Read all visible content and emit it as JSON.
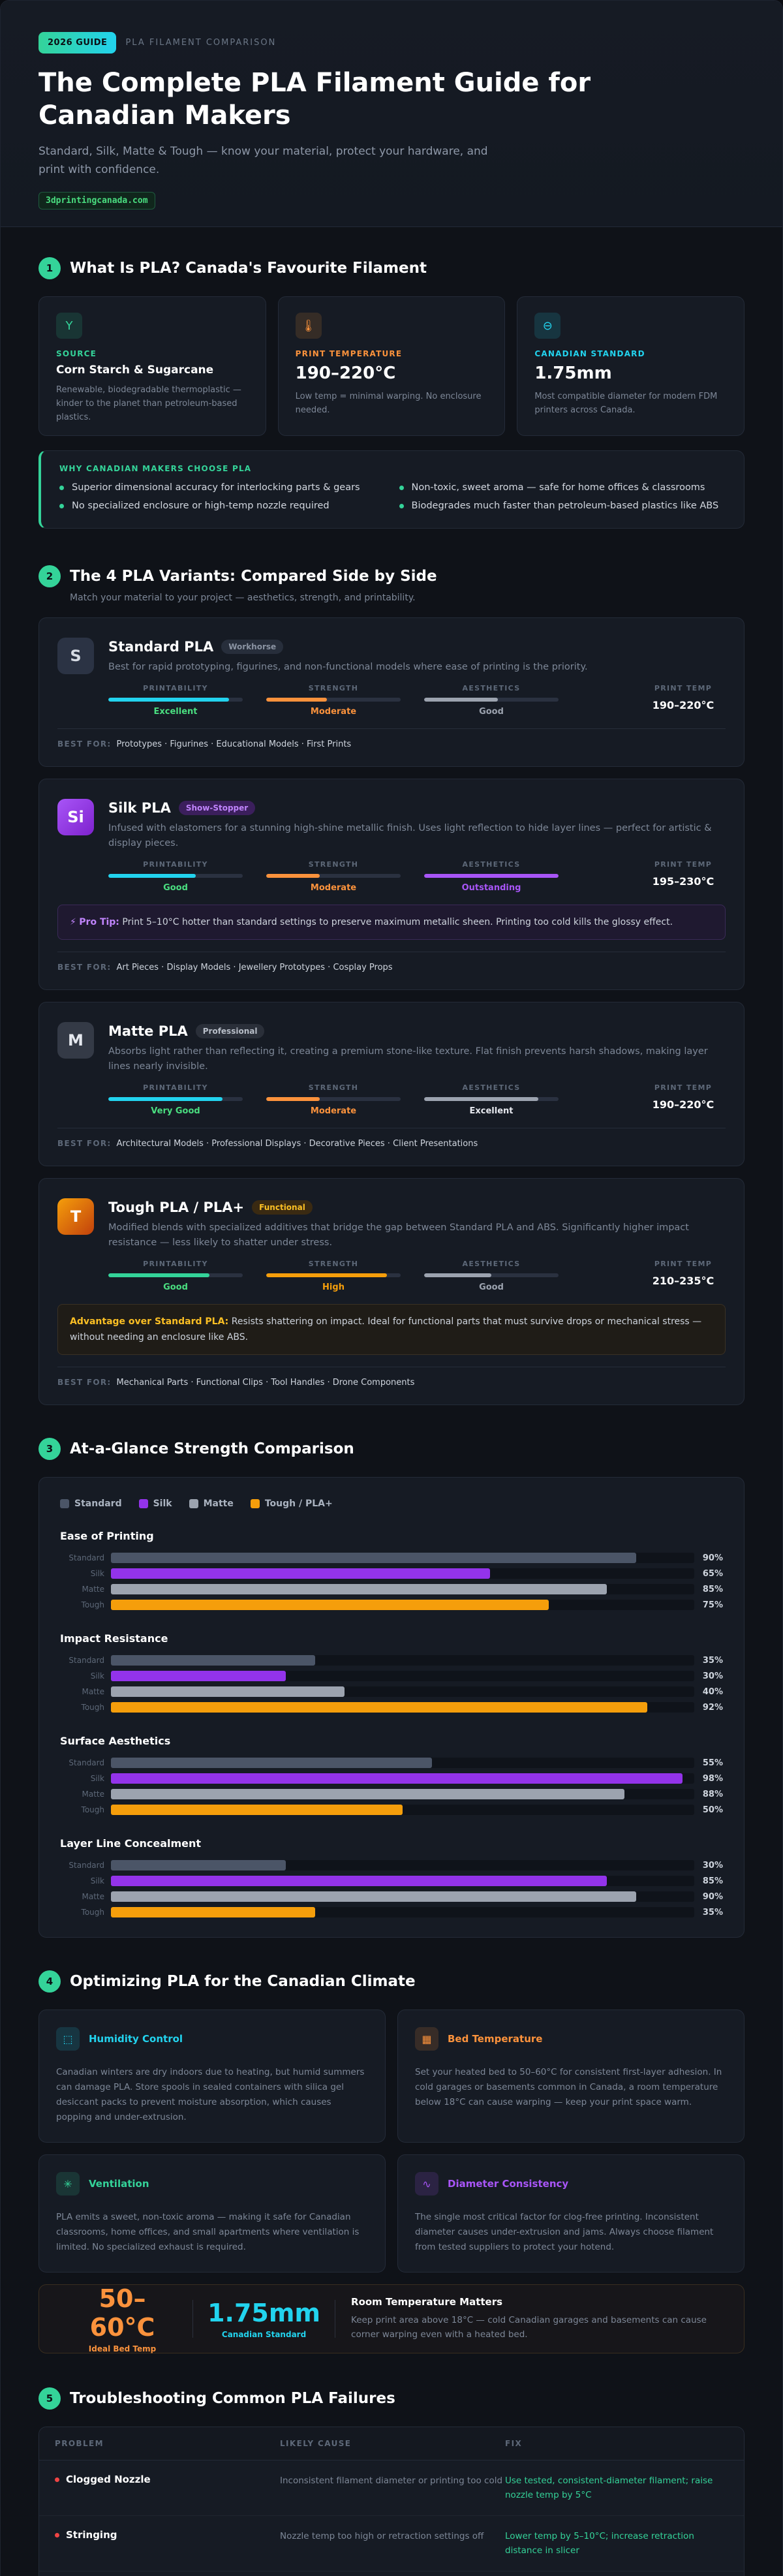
{
  "hero": {
    "badge": "2026 GUIDE",
    "eyebrow": "PLA FILAMENT COMPARISON",
    "title": "The Complete PLA Filament Guide for Canadian Makers",
    "subtitle": "Standard, Silk, Matte & Tough — know your material, protect your hardware, and print with confidence.",
    "domain": "3dprintingcanada.com"
  },
  "s1": {
    "num": "1",
    "title": "What Is PLA? Canada's Favourite Filament",
    "facts": [
      {
        "label": "SOURCE",
        "value": "Corn Starch & Sugarcane",
        "desc": "Renewable, biodegradable thermoplastic — kinder to the planet than petroleum-based plastics.",
        "icon": "sprout-icon",
        "color": "#34d399"
      },
      {
        "label": "PRINT TEMPERATURE",
        "value": "190–220°C",
        "desc": "Low temp = minimal warping. No enclosure needed.",
        "icon": "thermometer-icon",
        "color": "#fb923c"
      },
      {
        "label": "CANADIAN STANDARD",
        "value": "1.75mm",
        "desc": "Most compatible diameter for modern FDM printers across Canada.",
        "icon": "diameter-icon",
        "color": "#22d3ee"
      }
    ],
    "why_label": "WHY CANADIAN MAKERS CHOOSE PLA",
    "why": [
      "Superior dimensional accuracy for interlocking parts & gears",
      "Non-toxic, sweet aroma — safe for home offices & classrooms",
      "No specialized enclosure or high-temp nozzle required",
      "Biodegrades much faster than petroleum-based plastics like ABS"
    ]
  },
  "s2": {
    "num": "2",
    "title": "The 4 PLA Variants: Compared Side by Side",
    "subtitle": "Match your material to your project — aesthetics, strength, and printability.",
    "labels": {
      "printability": "PRINTABILITY",
      "strength": "STRENGTH",
      "aesthetics": "AESTHETICS",
      "temp": "PRINT TEMP",
      "best_for": "BEST FOR:"
    },
    "variants": [
      {
        "letter": "S",
        "name": "Standard PLA",
        "badge": "Workhorse",
        "desc": "Best for rapid prototyping, figurines, and non-functional models where ease of printing is the priority.",
        "printability": {
          "label": "Excellent",
          "level": 0.9
        },
        "strength": {
          "label": "Moderate",
          "level": 0.45
        },
        "aesthetics": {
          "label": "Good",
          "level": 0.55
        },
        "temp": "190–220°C",
        "best_for": "Prototypes · Figurines · Educational Models · First Prints",
        "tip_label": "",
        "tip": ""
      },
      {
        "letter": "Si",
        "name": "Silk PLA",
        "badge": "Show-Stopper",
        "desc": "Infused with elastomers for a stunning high-shine metallic finish. Uses light reflection to hide layer lines — perfect for artistic & display pieces.",
        "printability": {
          "label": "Good",
          "level": 0.65
        },
        "strength": {
          "label": "Moderate",
          "level": 0.4
        },
        "aesthetics": {
          "label": "Outstanding",
          "level": 1.0
        },
        "temp": "195–230°C",
        "best_for": "Art Pieces · Display Models · Jewellery Prototypes · Cosplay Props",
        "tip_label": "Pro Tip:",
        "tip": "Print 5–10°C hotter than standard settings to preserve maximum metallic sheen. Printing too cold kills the glossy effect."
      },
      {
        "letter": "M",
        "name": "Matte PLA",
        "badge": "Professional",
        "desc": "Absorbs light rather than reflecting it, creating a premium stone-like texture. Flat finish prevents harsh shadows, making layer lines nearly invisible.",
        "printability": {
          "label": "Very Good",
          "level": 0.85
        },
        "strength": {
          "label": "Moderate",
          "level": 0.4
        },
        "aesthetics": {
          "label": "Excellent",
          "level": 0.85
        },
        "temp": "190–220°C",
        "best_for": "Architectural Models · Professional Displays · Decorative Pieces · Client Presentations",
        "tip_label": "",
        "tip": ""
      },
      {
        "letter": "T",
        "name": "Tough PLA / PLA+",
        "badge": "Functional",
        "desc": "Modified blends with specialized additives that bridge the gap between Standard PLA and ABS. Significantly higher impact resistance — less likely to shatter under stress.",
        "printability": {
          "label": "Good",
          "level": 0.75
        },
        "strength": {
          "label": "High",
          "level": 0.9
        },
        "aesthetics": {
          "label": "Good",
          "level": 0.5
        },
        "temp": "210–235°C",
        "best_for": "Mechanical Parts · Functional Clips · Tool Handles · Drone Components",
        "tip_label": "Advantage over Standard PLA:",
        "tip": "Resists shattering on impact. Ideal for functional parts that must survive drops or mechanical stress — without needing an enclosure like ABS."
      }
    ]
  },
  "s3": {
    "num": "3",
    "title": "At-a-Glance Strength Comparison"
  },
  "chart_data": {
    "type": "bar",
    "orientation": "horizontal",
    "legend": [
      "Standard",
      "Silk",
      "Matte",
      "Tough / PLA+"
    ],
    "colors": {
      "Standard": "#4b5567",
      "Silk": "#9333ea",
      "Matte": "#9ca3af",
      "Tough / PLA+": "#f59e0b"
    },
    "row_labels": [
      "Standard",
      "Silk",
      "Matte",
      "Tough"
    ],
    "xlim": [
      0,
      100
    ],
    "groups": [
      {
        "name": "Ease of Printing",
        "values": [
          90,
          65,
          85,
          75
        ]
      },
      {
        "name": "Impact Resistance",
        "values": [
          35,
          30,
          40,
          92
        ]
      },
      {
        "name": "Surface Aesthetics",
        "values": [
          55,
          98,
          88,
          50
        ]
      },
      {
        "name": "Layer Line Concealment",
        "values": [
          30,
          85,
          90,
          35
        ]
      }
    ]
  },
  "s4": {
    "num": "4",
    "title": "Optimizing PLA for the Canadian Climate",
    "cards": [
      {
        "title": "Humidity Control",
        "icon": "box-icon",
        "color": "#22d3ee",
        "desc": "Canadian winters are dry indoors due to heating, but humid summers can damage PLA. Store spools in sealed containers with silica gel desiccant packs to prevent moisture absorption, which causes popping and under-extrusion."
      },
      {
        "title": "Bed Temperature",
        "icon": "heated-bed-icon",
        "color": "#fb923c",
        "desc": "Set your heated bed to 50–60°C for consistent first-layer adhesion. In cold garages or basements common in Canada, a room temperature below 18°C can cause warping — keep your print space warm."
      },
      {
        "title": "Ventilation",
        "icon": "fan-icon",
        "color": "#34d399",
        "desc": "PLA emits a sweet, non-toxic aroma — making it safe for Canadian classrooms, home offices, and small apartments where ventilation is limited. No specialized exhaust is required."
      },
      {
        "title": "Diameter Consistency",
        "icon": "pulse-icon",
        "color": "#a855f7",
        "desc": "The single most critical factor for clog-free printing. Inconsistent diameter causes under-extrusion and jams. Always choose filament from tested suppliers to protect your hotend."
      }
    ],
    "stats": [
      {
        "value": "50–60°C",
        "label": "Ideal Bed Temp",
        "color": "#fb923c"
      },
      {
        "value": "1.75mm",
        "label": "Canadian Standard",
        "color": "#22d3ee"
      }
    ],
    "room_title": "Room Temperature Matters",
    "room_desc": "Keep print area above 18°C — cold Canadian garages and basements can cause corner warping even with a heated bed."
  },
  "s5": {
    "num": "5",
    "title": "Troubleshooting Common PLA Failures",
    "headers": [
      "PROBLEM",
      "LIKELY CAUSE",
      "FIX"
    ],
    "rows": [
      {
        "problem": "Clogged Nozzle",
        "cause": "Inconsistent filament diameter or printing too cold",
        "fix": "Use tested, consistent-diameter filament; raise nozzle temp by 5°C"
      },
      {
        "problem": "Stringing",
        "cause": "Nozzle temp too high or retraction settings off",
        "fix": "Lower temp by 5–10°C; increase retraction distance in slicer"
      },
      {
        "problem": "",
        "cause": "",
        "fix": ""
      }
    ]
  }
}
